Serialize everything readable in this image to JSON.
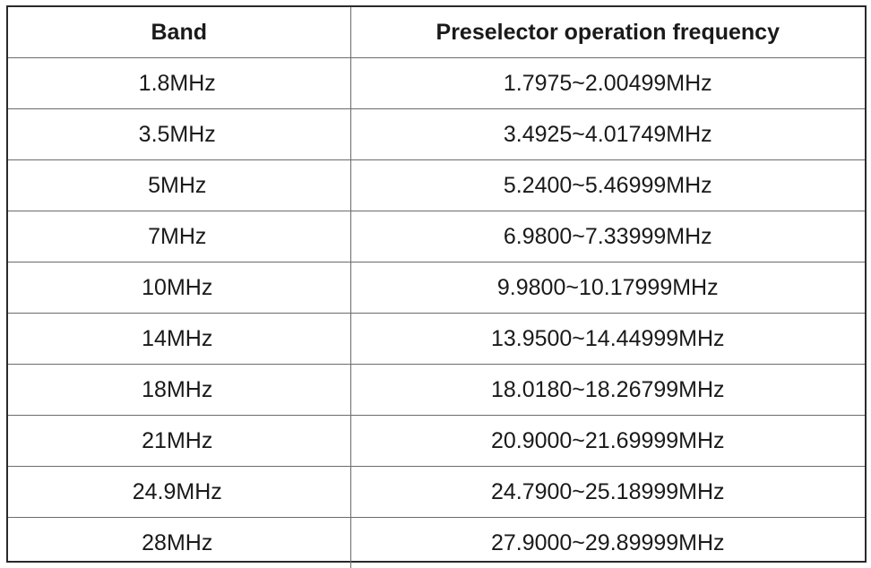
{
  "table": {
    "headers": [
      "Band",
      "Preselector operation frequency"
    ],
    "rows": [
      [
        "1.8MHz",
        "1.7975~2.00499MHz"
      ],
      [
        "3.5MHz",
        "3.4925~4.01749MHz"
      ],
      [
        "5MHz",
        "5.2400~5.46999MHz"
      ],
      [
        "7MHz",
        "6.9800~7.33999MHz"
      ],
      [
        "10MHz",
        "9.9800~10.17999MHz"
      ],
      [
        "14MHz",
        "13.9500~14.44999MHz"
      ],
      [
        "18MHz",
        "18.0180~18.26799MHz"
      ],
      [
        "21MHz",
        "20.9000~21.69999MHz"
      ],
      [
        "24.9MHz",
        "24.7900~25.18999MHz"
      ],
      [
        "28MHz",
        "27.9000~29.89999MHz"
      ]
    ]
  }
}
